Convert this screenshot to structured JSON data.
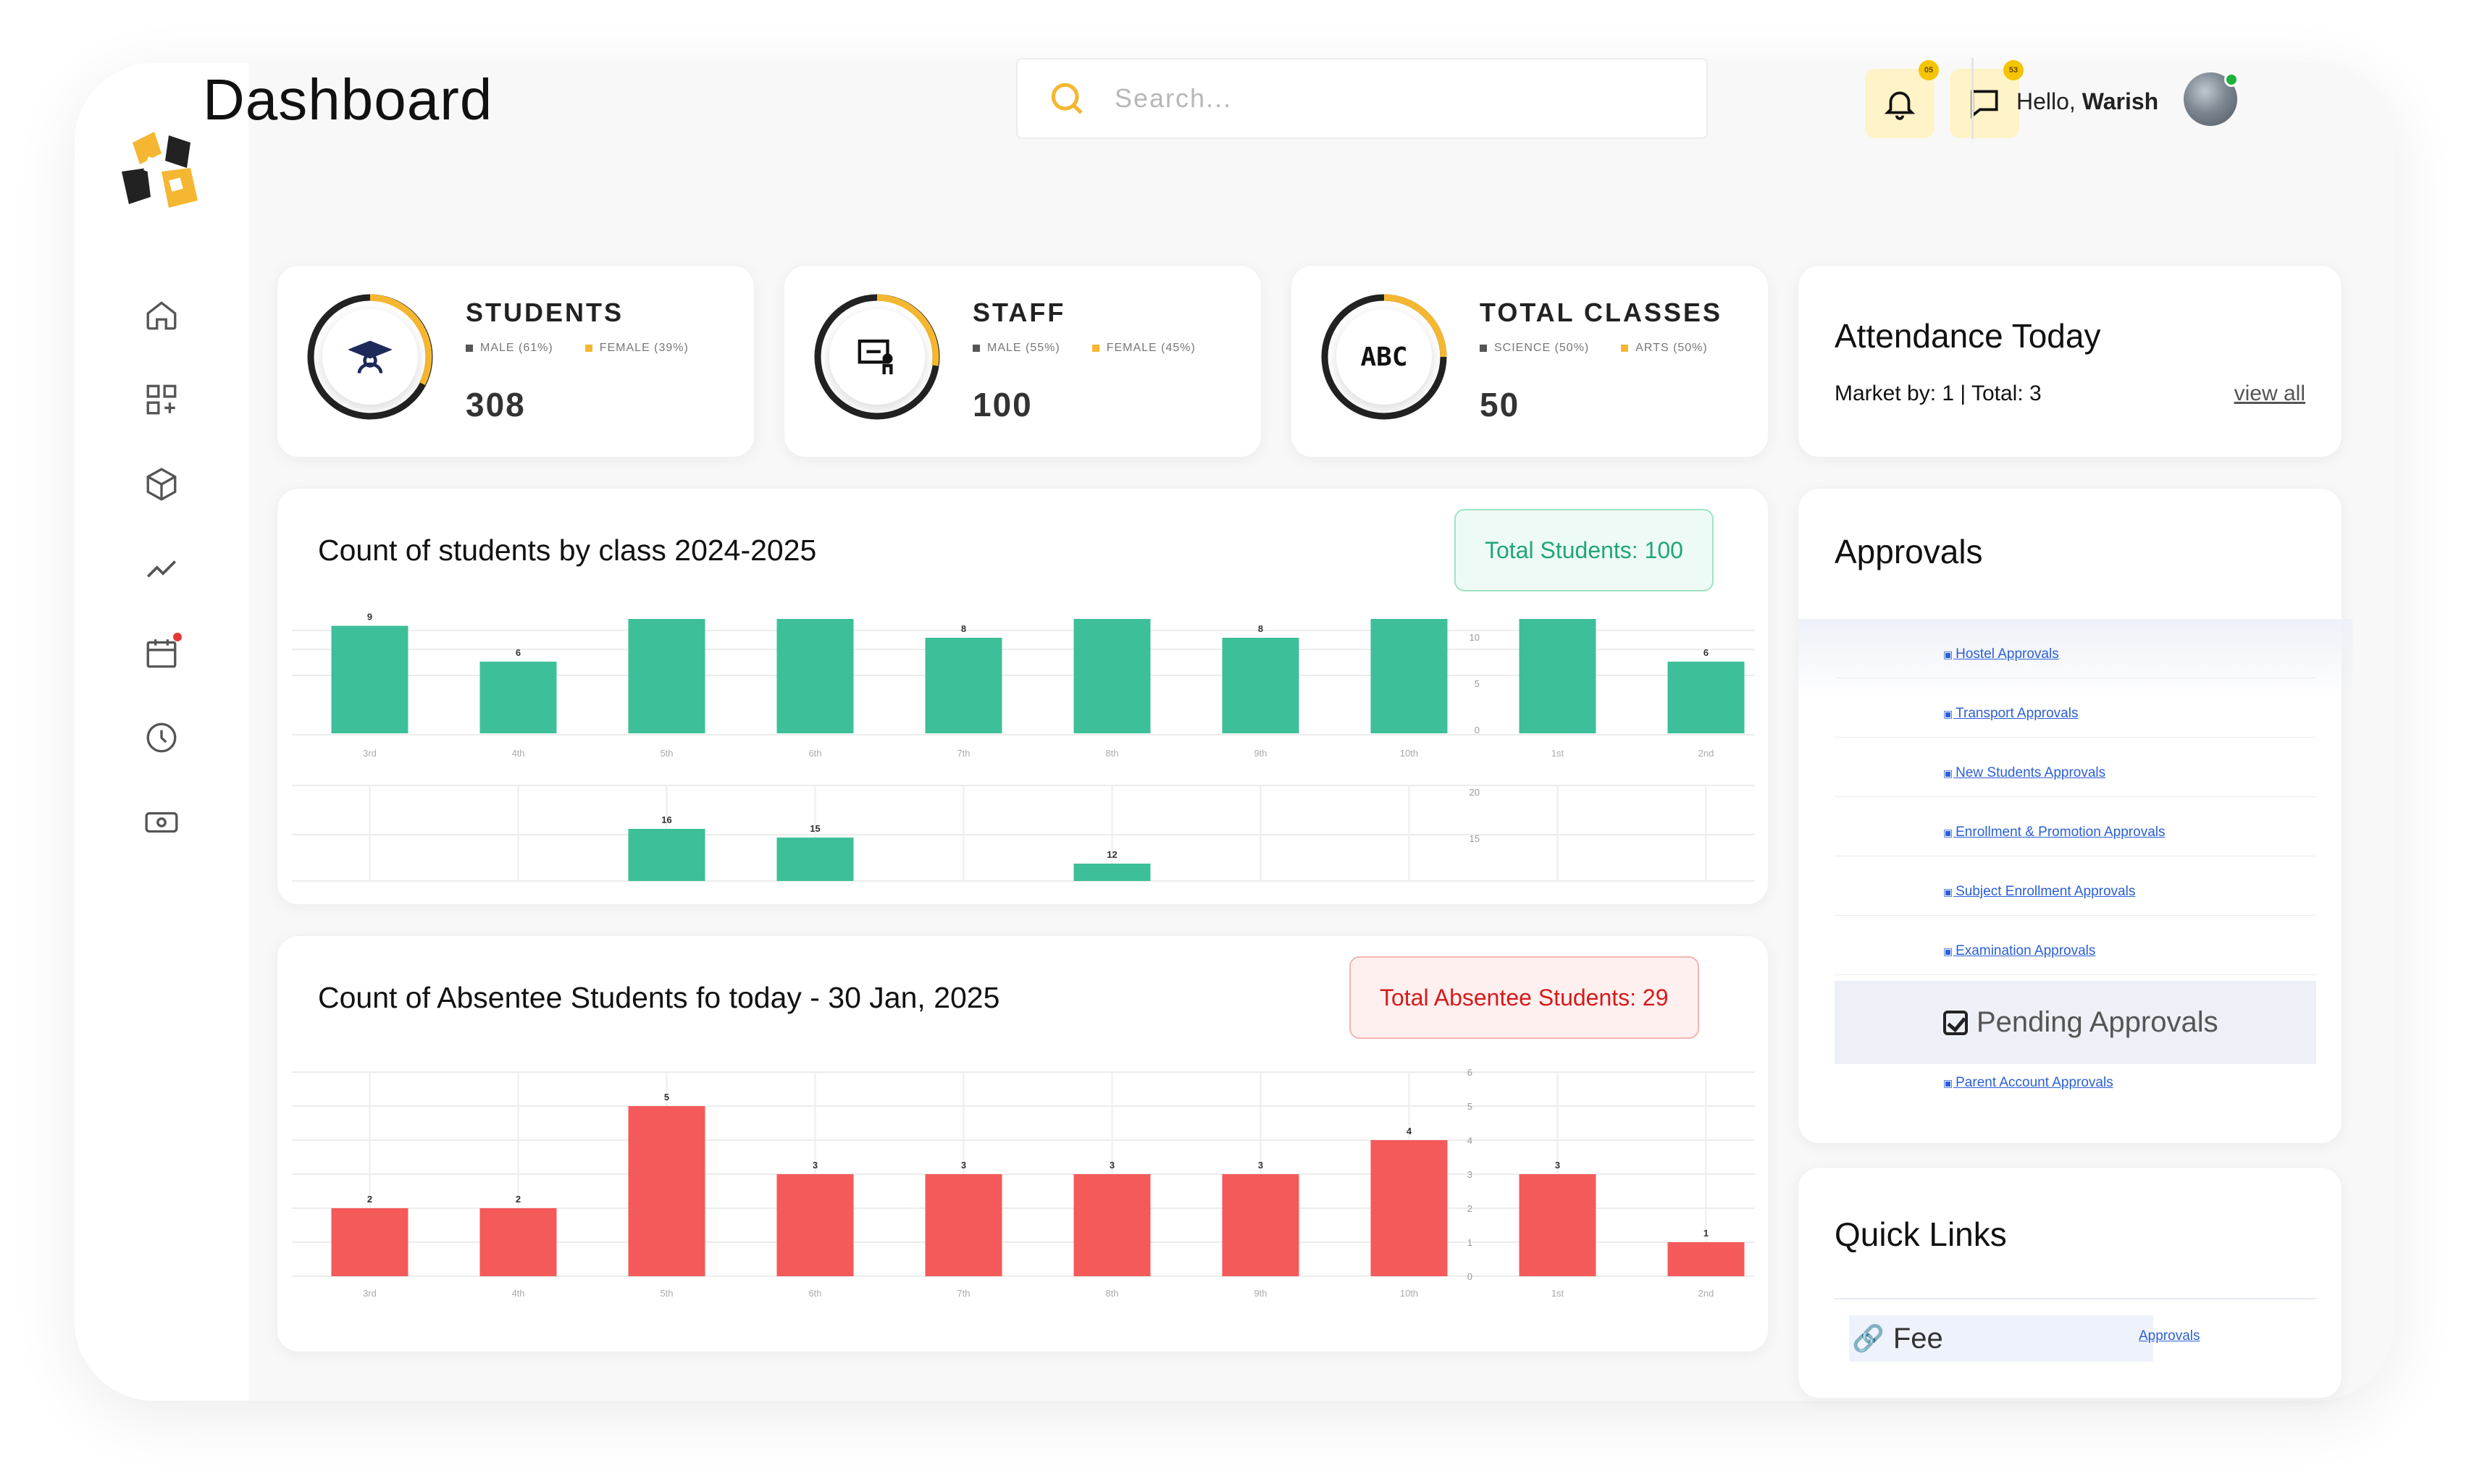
{
  "header": {
    "title": "Dashboard",
    "search_placeholder": "Search...",
    "notifications_count": "05",
    "messages_count": "53",
    "greeting_prefix": "Hello,",
    "user_name": "Warish"
  },
  "sidebar": {
    "items": [
      {
        "icon": "home-icon"
      },
      {
        "icon": "apps-add-icon"
      },
      {
        "icon": "cube-icon"
      },
      {
        "icon": "trend-icon"
      },
      {
        "icon": "calendar-icon",
        "has_dot": true
      },
      {
        "icon": "clock-icon"
      },
      {
        "icon": "money-icon"
      }
    ]
  },
  "stats": [
    {
      "title": "STUDENTS",
      "legend_a": "MALE (61%)",
      "legend_b": "FEMALE (39%)",
      "value": "308",
      "icon": "graduate-icon"
    },
    {
      "title": "STAFF",
      "legend_a": "MALE (55%)",
      "legend_b": "FEMALE (45%)",
      "value": "100",
      "icon": "teacher-board-icon"
    },
    {
      "title": "TOTAL CLASSES",
      "legend_a": "SCIENCE (50%)",
      "legend_b": "ARTS (50%)",
      "value": "50",
      "icon": "abc-icon",
      "icon_text": "ABC"
    }
  ],
  "attendance": {
    "title": "Attendance Today",
    "info": "Market by: 1  | Total: 3",
    "link": "view all"
  },
  "students_chart": {
    "title": "Count of students by class 2024-2025",
    "pill": "Total Students: 100"
  },
  "absentee_chart": {
    "title": "Count of Absentee Students fo today - 30 Jan, 2025",
    "pill": "Total Absentee Students: 29"
  },
  "chart_data": [
    {
      "type": "bar",
      "categories": [
        "3rd",
        "4th",
        "5th",
        "6th",
        "7th",
        "8th",
        "9th",
        "10th",
        "1st",
        "2nd"
      ],
      "series": [
        {
          "values": [
            9,
            6,
            16,
            15,
            8,
            12,
            8,
            10,
            10,
            6
          ]
        }
      ],
      "bar_color": "#3dbf9a",
      "right_axis_ticks_top": [
        "10",
        "5",
        "0"
      ],
      "right_axis_ticks_bottom": [
        "20",
        "15"
      ]
    },
    {
      "type": "bar",
      "categories": [
        "3rd",
        "4th",
        "5th",
        "6th",
        "7th",
        "8th",
        "9th",
        "10th",
        "1st",
        "2nd"
      ],
      "series": [
        {
          "values": [
            2,
            2,
            5,
            3,
            3,
            3,
            3,
            4,
            3,
            1
          ]
        }
      ],
      "bar_color": "#f45a5a",
      "ylim": [
        0,
        6
      ],
      "y_ticks": [
        "6",
        "5",
        "4",
        "3",
        "2",
        "1",
        "0"
      ]
    }
  ],
  "approvals": {
    "title": "Approvals",
    "items": [
      "Hostel Approvals",
      "Transport Approvals",
      "New Students Approvals",
      "Enrollment & Promotion Approvals",
      "Subject Enrollment Approvals",
      "Examination Approvals",
      "Parent Account Approvals"
    ],
    "pending_label": "Pending Approvals"
  },
  "quick_links": {
    "title": "Quick Links",
    "item": "Fee",
    "item_side_link": "Approvals"
  },
  "colors": {
    "accent": "#f5b731",
    "green": "#3dbf9a",
    "red": "#f45a5a"
  }
}
